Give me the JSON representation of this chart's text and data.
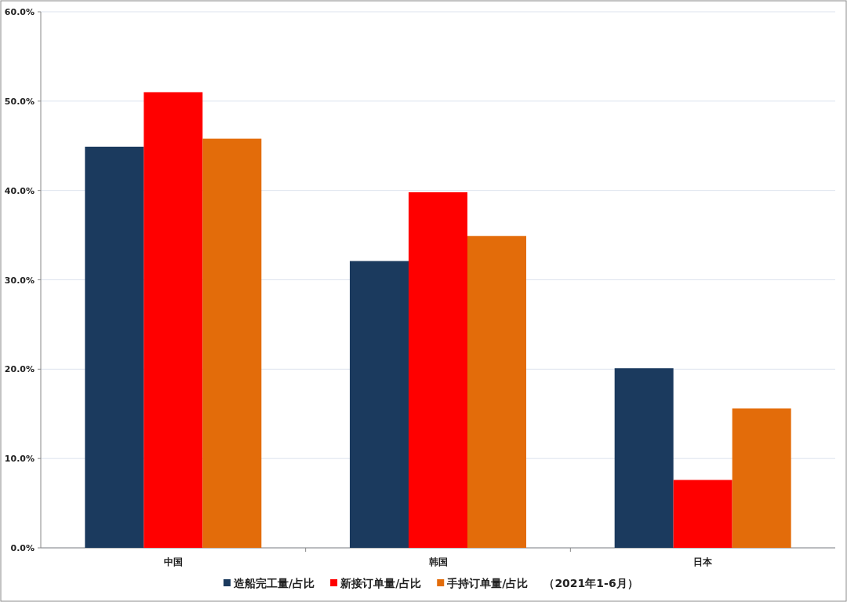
{
  "chart_data": {
    "type": "bar",
    "categories": [
      "中国",
      "韩国",
      "日本"
    ],
    "series": [
      {
        "name": "造船完工量/占比",
        "color": "#1b3a5e",
        "values": [
          44.9,
          32.1,
          20.1
        ]
      },
      {
        "name": "新接订单量/占比",
        "color": "#ff0000",
        "values": [
          51.0,
          39.8,
          7.6
        ]
      },
      {
        "name": "手持订单量/占比",
        "color": "#e36c0a",
        "values": [
          45.8,
          34.9,
          15.6
        ]
      }
    ],
    "ylim": [
      0,
      60
    ],
    "yticks": [
      {
        "value": 0,
        "label": "0.0%"
      },
      {
        "value": 10,
        "label": "10.0%"
      },
      {
        "value": 20,
        "label": "20.0%"
      },
      {
        "value": 30,
        "label": "30.0%"
      },
      {
        "value": 40,
        "label": "40.0%"
      },
      {
        "value": 50,
        "label": "50.0%"
      },
      {
        "value": 60,
        "label": "60.0%"
      }
    ],
    "grid": "y",
    "legend": "bottom",
    "annotations": [
      "（2021年1-6月）"
    ]
  }
}
